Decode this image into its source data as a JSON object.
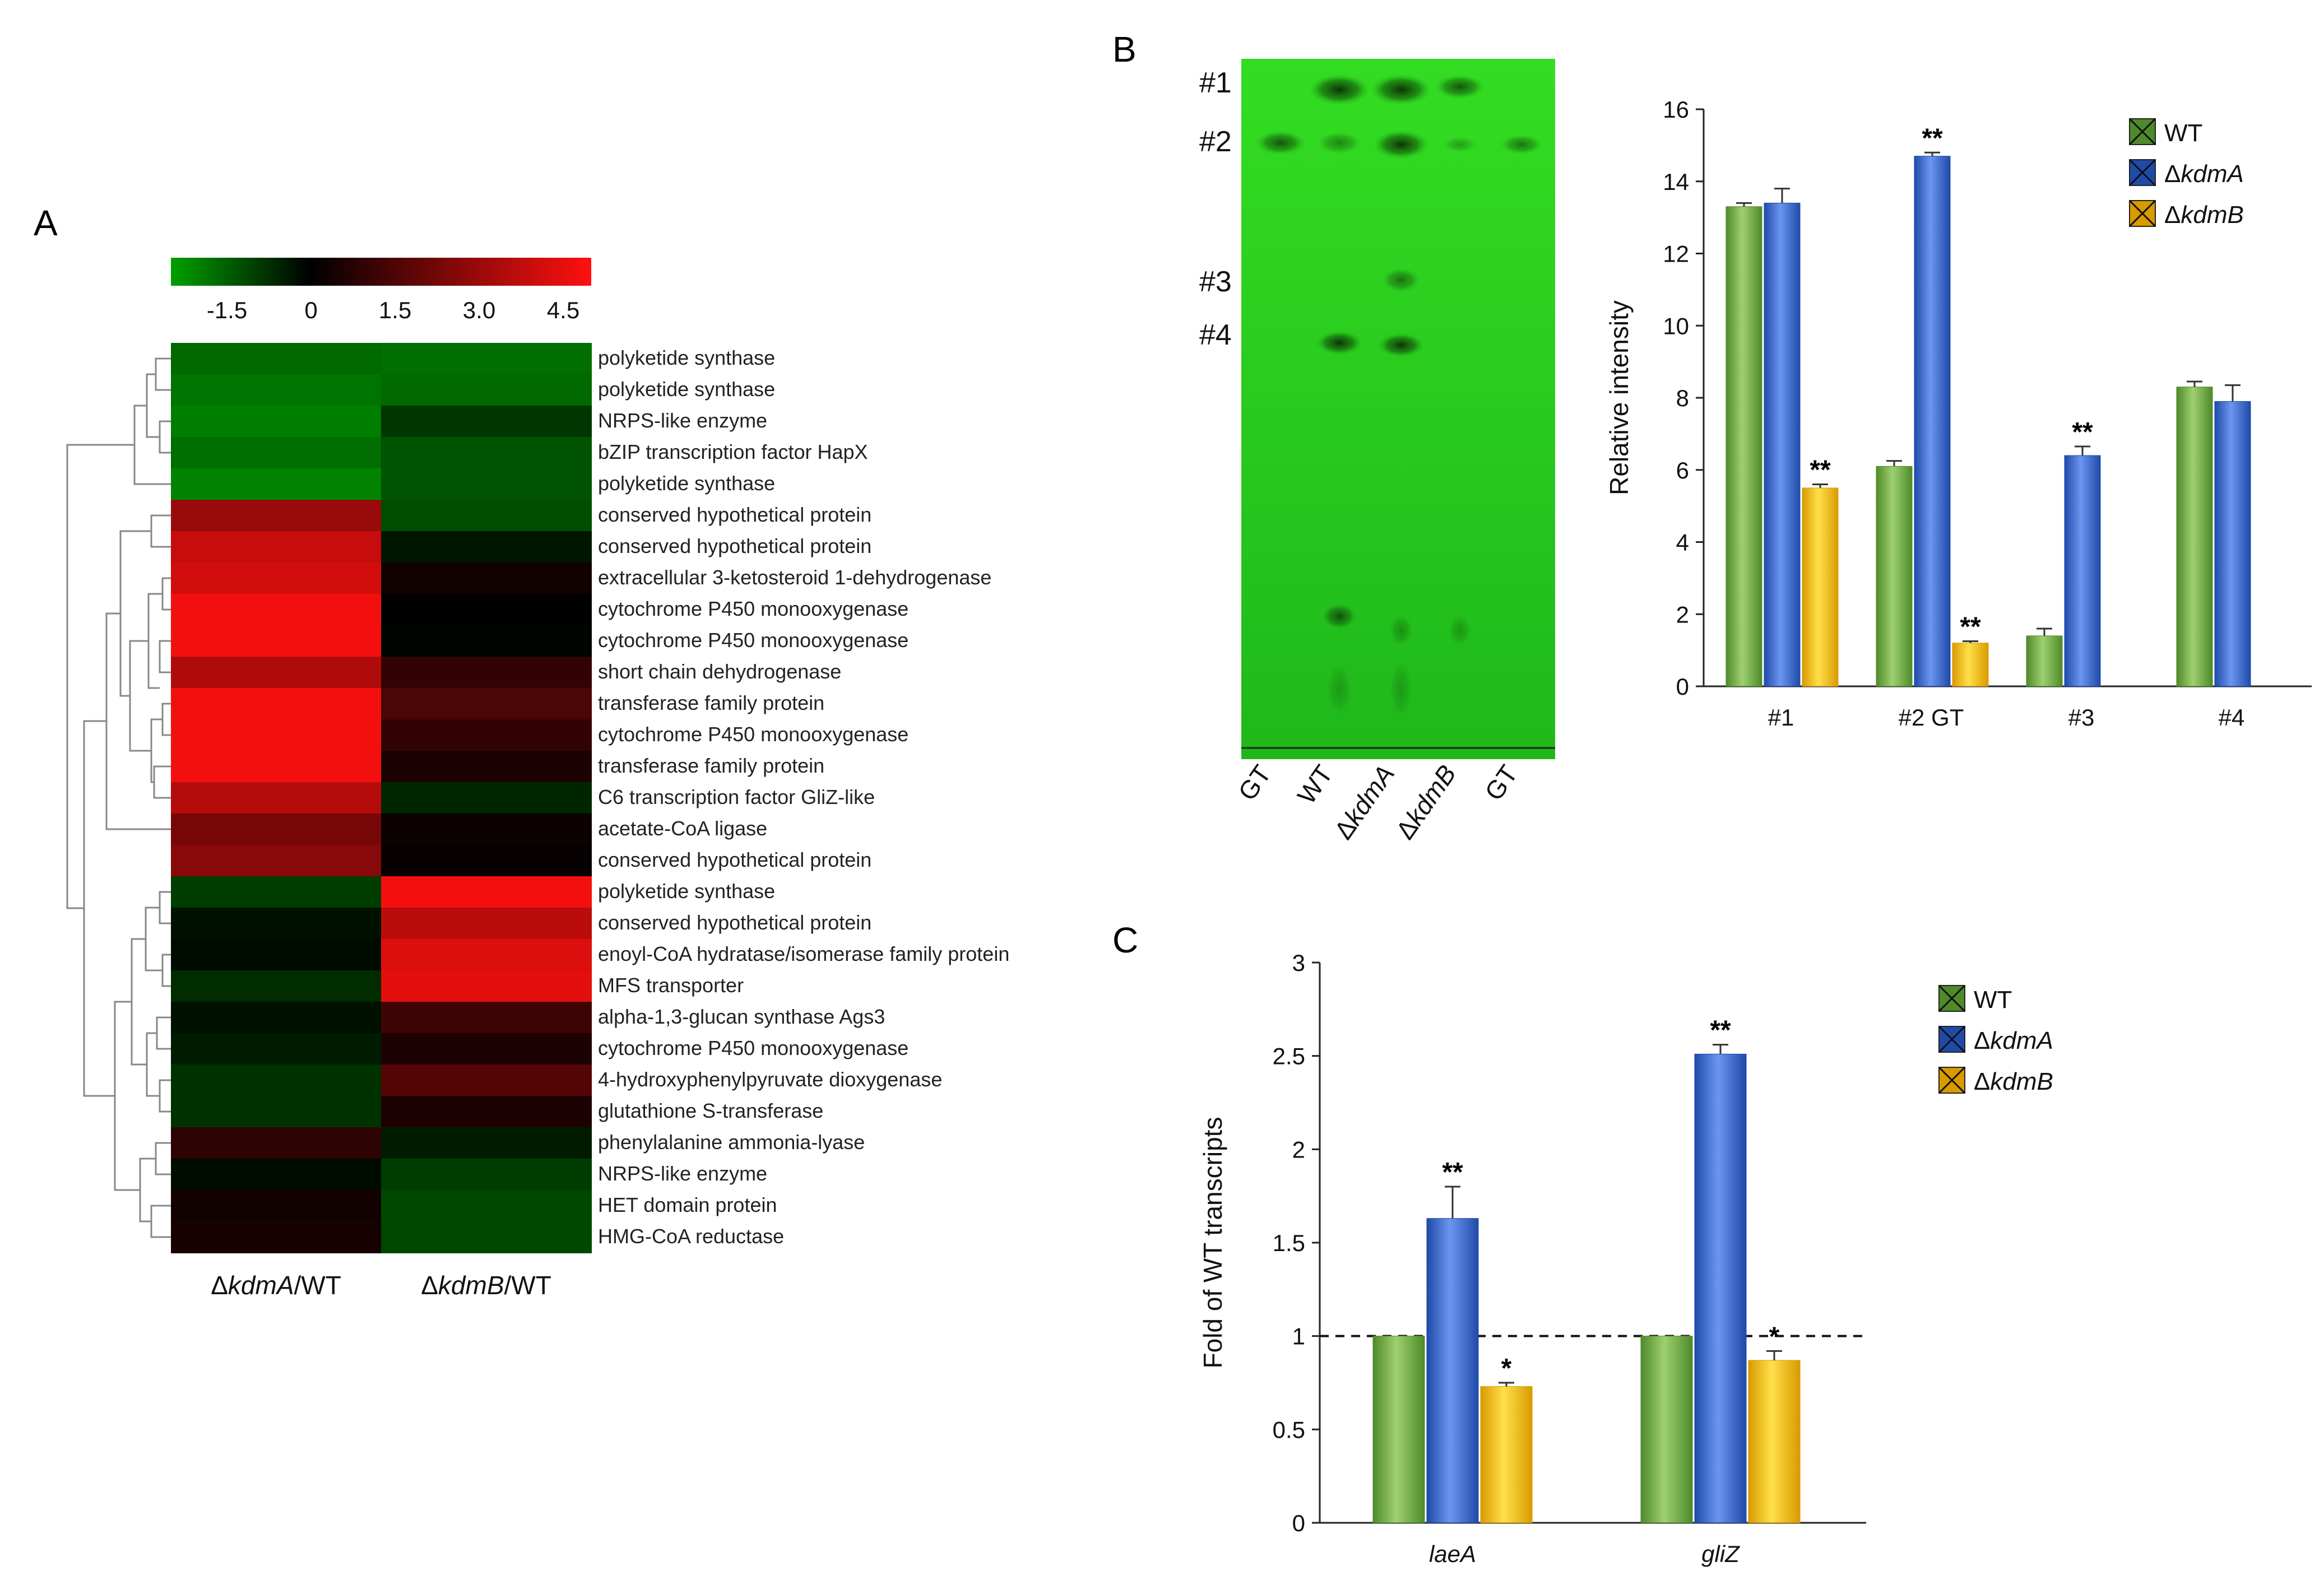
{
  "panel_labels": {
    "a": "A",
    "b": "B",
    "c": "C"
  },
  "colors": {
    "wt": "#78b04a",
    "kdma": "#3f6fcf",
    "kdmb": "#f6c200",
    "tlc_bg": "#22cc22"
  },
  "legend": {
    "wt": "WT",
    "delta": "Δ",
    "kdma": "kdmA",
    "kdmb": "kdmB"
  },
  "chart_data": [
    {
      "type": "heatmap",
      "colorbar": {
        "ticks": [
          "-1.5",
          "0",
          "1.5",
          "3.0",
          "4.5"
        ],
        "ticks_num": [
          -1.5,
          0,
          1.5,
          3.0,
          4.5
        ],
        "range": [
          -2.5,
          5.0
        ]
      },
      "columns": [
        {
          "delta": "Δ",
          "name": "kdmA",
          "suffix": "/WT"
        },
        {
          "delta": "Δ",
          "name": "kdmB",
          "suffix": "/WT"
        }
      ],
      "rows": [
        {
          "label": "polyketide synthase",
          "values": [
            -1.4,
            -1.5
          ]
        },
        {
          "label": "polyketide synthase",
          "values": [
            -1.6,
            -1.4
          ]
        },
        {
          "label": "NRPS-like enzyme",
          "values": [
            -1.8,
            -0.5
          ]
        },
        {
          "label": "bZIP transcription factor HapX",
          "values": [
            -1.5,
            -1.0
          ]
        },
        {
          "label": "polyketide synthase",
          "values": [
            -1.9,
            -1.0
          ]
        },
        {
          "label": "conserved hypothetical protein",
          "values": [
            3.2,
            -0.9
          ]
        },
        {
          "label": "conserved hypothetical protein",
          "values": [
            4.0,
            0.1
          ]
        },
        {
          "label": "extracellular 3-ketosteroid 1-dehydrogenase",
          "values": [
            4.2,
            0.8
          ]
        },
        {
          "label": "cytochrome P450 monooxygenase",
          "values": [
            4.8,
            0.5
          ]
        },
        {
          "label": "cytochrome P450 monooxygenase",
          "values": [
            4.8,
            0.4
          ]
        },
        {
          "label": "short chain dehydrogenase",
          "values": [
            3.6,
            1.4
          ]
        },
        {
          "label": "transferase family protein",
          "values": [
            4.8,
            1.8
          ]
        },
        {
          "label": "cytochrome P450 monooxygenase",
          "values": [
            4.8,
            1.4
          ]
        },
        {
          "label": "transferase family protein",
          "values": [
            4.8,
            1.0
          ]
        },
        {
          "label": "C6 transcription factor GliZ-like",
          "values": [
            3.7,
            -0.2
          ]
        },
        {
          "label": "acetate-CoA ligase",
          "values": [
            2.6,
            0.7
          ]
        },
        {
          "label": "conserved hypothetical protein",
          "values": [
            2.9,
            0.6
          ]
        },
        {
          "label": "polyketide synthase",
          "values": [
            -0.6,
            4.8
          ]
        },
        {
          "label": "conserved hypothetical protein",
          "values": [
            0.2,
            3.8
          ]
        },
        {
          "label": "enoyl-CoA hydratase/isomerase family protein",
          "values": [
            0.3,
            4.4
          ]
        },
        {
          "label": "MFS transporter",
          "values": [
            -0.3,
            4.5
          ]
        },
        {
          "label": "alpha-1,3-glucan synthase Ags3",
          "values": [
            0.2,
            1.6
          ]
        },
        {
          "label": "cytochrome P450 monooxygenase",
          "values": [
            0.0,
            1.0
          ]
        },
        {
          "label": "4-hydroxyphenylpyruvate dioxygenase",
          "values": [
            -0.4,
            2.0
          ]
        },
        {
          "label": "glutathione S-transferase",
          "values": [
            -0.4,
            1.0
          ]
        },
        {
          "label": "phenylalanine ammonia-lyase",
          "values": [
            1.3,
            0.0
          ]
        },
        {
          "label": "NRPS-like enzyme",
          "values": [
            0.3,
            -0.6
          ]
        },
        {
          "label": "HET domain protein",
          "values": [
            0.8,
            -0.8
          ]
        },
        {
          "label": "HMG-CoA reductase",
          "values": [
            0.9,
            -0.8
          ]
        }
      ]
    },
    {
      "type": "image",
      "description_lanes": [
        "GT",
        "WT",
        "kdmA",
        "kdmB",
        "GT"
      ],
      "lane_labels": [
        {
          "delta": "",
          "name": "GT"
        },
        {
          "delta": "",
          "name": "WT"
        },
        {
          "delta": "Δ",
          "name": "kdmA"
        },
        {
          "delta": "Δ",
          "name": "kdmB"
        },
        {
          "delta": "",
          "name": "GT"
        }
      ],
      "band_labels": [
        "#1",
        "#2",
        "#3",
        "#4"
      ]
    },
    {
      "type": "bar",
      "title": "",
      "ylabel": "Relative intensity",
      "ylim": [
        0,
        16
      ],
      "yticks": [
        0,
        2,
        4,
        6,
        8,
        10,
        12,
        14,
        16
      ],
      "categories": [
        "#1",
        "#2 GT",
        "#3",
        "#4"
      ],
      "series": [
        {
          "name": "WT",
          "values": [
            13.3,
            6.1,
            1.4,
            8.3
          ],
          "errors": [
            0.1,
            0.15,
            0.2,
            0.15
          ],
          "stars": [
            "",
            "",
            "",
            ""
          ]
        },
        {
          "name": "ΔkdmA",
          "values": [
            13.4,
            14.7,
            6.4,
            7.9
          ],
          "errors": [
            0.4,
            0.1,
            0.25,
            0.45
          ],
          "stars": [
            "",
            "**",
            "**",
            ""
          ]
        },
        {
          "name": "ΔkdmB",
          "values": [
            5.5,
            1.2,
            null,
            null
          ],
          "errors": [
            0.1,
            0.05,
            null,
            null
          ],
          "stars": [
            "**",
            "**",
            "",
            ""
          ]
        }
      ]
    },
    {
      "type": "bar",
      "title": "",
      "ylabel": "Fold of WT transcripts",
      "ylim": [
        0,
        3
      ],
      "yticks": [
        "0",
        "0.5",
        "1",
        "1.5",
        "2",
        "2.5",
        "3"
      ],
      "yticks_num": [
        0,
        0.5,
        1,
        1.5,
        2,
        2.5,
        3
      ],
      "reference_line": 1,
      "categories": [
        "laeA",
        "gliZ"
      ],
      "series": [
        {
          "name": "WT",
          "values": [
            1.0,
            1.0
          ],
          "errors": [
            0,
            0
          ],
          "stars": [
            "",
            ""
          ]
        },
        {
          "name": "ΔkdmA",
          "values": [
            1.63,
            2.51
          ],
          "errors": [
            0.17,
            0.05
          ],
          "stars": [
            "**",
            "**"
          ]
        },
        {
          "name": "ΔkdmB",
          "values": [
            0.73,
            0.87
          ],
          "errors": [
            0.02,
            0.05
          ],
          "stars": [
            "*",
            "*"
          ]
        }
      ]
    }
  ]
}
